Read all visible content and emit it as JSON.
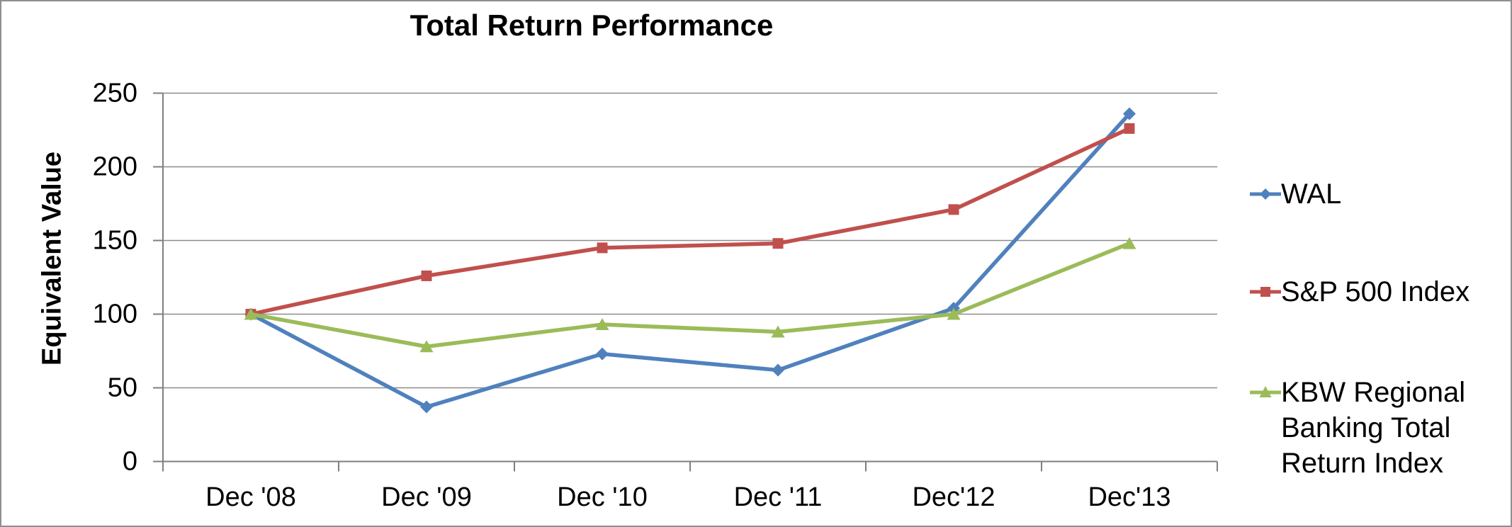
{
  "chart_data": {
    "type": "line",
    "title": "Total Return Performance",
    "ylabel": "Equivalent Value",
    "xlabel": "",
    "categories": [
      "Dec '08",
      "Dec '09",
      "Dec '10",
      "Dec '11",
      "Dec'12",
      "Dec'13"
    ],
    "series": [
      {
        "name": "WAL",
        "color": "#4F81BD",
        "marker": "diamond",
        "values": [
          100,
          37,
          73,
          62,
          104,
          236
        ]
      },
      {
        "name": "S&P 500 Index",
        "color": "#C0504D",
        "marker": "square",
        "values": [
          100,
          126,
          145,
          148,
          171,
          226
        ]
      },
      {
        "name": "KBW Regional Banking Total Return Index",
        "color": "#9BBB59",
        "marker": "triangle",
        "values": [
          100,
          78,
          93,
          88,
          100,
          148
        ]
      }
    ],
    "ylim": [
      0,
      250
    ],
    "ytick_step": 50,
    "grid": true,
    "legend_position": "right",
    "colors": {
      "gridline": "#8C8C8C",
      "axis": "#7F7F7F",
      "text": "#000000",
      "background": "#FFFFFF",
      "border": "#8F8F8F"
    }
  }
}
